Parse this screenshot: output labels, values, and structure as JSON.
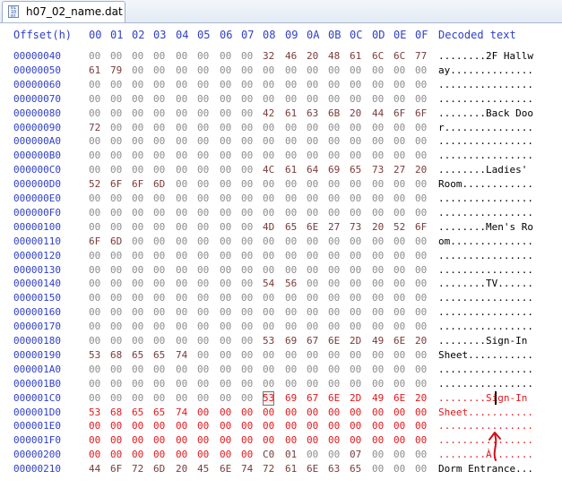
{
  "tab": {
    "title": "h07_02_name.dat"
  },
  "header": {
    "offset_label": "Offset(h)",
    "columns": [
      "00",
      "01",
      "02",
      "03",
      "04",
      "05",
      "06",
      "07",
      "08",
      "09",
      "0A",
      "0B",
      "0C",
      "0D",
      "0E",
      "0F"
    ],
    "decoded_label": "Decoded text"
  },
  "rows": [
    {
      "offset": "00000040",
      "bytes": [
        "00",
        "00",
        "00",
        "00",
        "00",
        "00",
        "00",
        "00",
        "32",
        "46",
        "20",
        "48",
        "61",
        "6C",
        "6C",
        "77"
      ],
      "decoded": "........2F Hallw"
    },
    {
      "offset": "00000050",
      "bytes": [
        "61",
        "79",
        "00",
        "00",
        "00",
        "00",
        "00",
        "00",
        "00",
        "00",
        "00",
        "00",
        "00",
        "00",
        "00",
        "00"
      ],
      "decoded": "ay.............."
    },
    {
      "offset": "00000060",
      "bytes": [
        "00",
        "00",
        "00",
        "00",
        "00",
        "00",
        "00",
        "00",
        "00",
        "00",
        "00",
        "00",
        "00",
        "00",
        "00",
        "00"
      ],
      "decoded": "................"
    },
    {
      "offset": "00000070",
      "bytes": [
        "00",
        "00",
        "00",
        "00",
        "00",
        "00",
        "00",
        "00",
        "00",
        "00",
        "00",
        "00",
        "00",
        "00",
        "00",
        "00"
      ],
      "decoded": "................"
    },
    {
      "offset": "00000080",
      "bytes": [
        "00",
        "00",
        "00",
        "00",
        "00",
        "00",
        "00",
        "00",
        "42",
        "61",
        "63",
        "6B",
        "20",
        "44",
        "6F",
        "6F"
      ],
      "decoded": "........Back Doo"
    },
    {
      "offset": "00000090",
      "bytes": [
        "72",
        "00",
        "00",
        "00",
        "00",
        "00",
        "00",
        "00",
        "00",
        "00",
        "00",
        "00",
        "00",
        "00",
        "00",
        "00"
      ],
      "decoded": "r..............."
    },
    {
      "offset": "000000A0",
      "bytes": [
        "00",
        "00",
        "00",
        "00",
        "00",
        "00",
        "00",
        "00",
        "00",
        "00",
        "00",
        "00",
        "00",
        "00",
        "00",
        "00"
      ],
      "decoded": "................"
    },
    {
      "offset": "000000B0",
      "bytes": [
        "00",
        "00",
        "00",
        "00",
        "00",
        "00",
        "00",
        "00",
        "00",
        "00",
        "00",
        "00",
        "00",
        "00",
        "00",
        "00"
      ],
      "decoded": "................"
    },
    {
      "offset": "000000C0",
      "bytes": [
        "00",
        "00",
        "00",
        "00",
        "00",
        "00",
        "00",
        "00",
        "4C",
        "61",
        "64",
        "69",
        "65",
        "73",
        "27",
        "20"
      ],
      "decoded": "........Ladies' "
    },
    {
      "offset": "000000D0",
      "bytes": [
        "52",
        "6F",
        "6F",
        "6D",
        "00",
        "00",
        "00",
        "00",
        "00",
        "00",
        "00",
        "00",
        "00",
        "00",
        "00",
        "00"
      ],
      "decoded": "Room............"
    },
    {
      "offset": "000000E0",
      "bytes": [
        "00",
        "00",
        "00",
        "00",
        "00",
        "00",
        "00",
        "00",
        "00",
        "00",
        "00",
        "00",
        "00",
        "00",
        "00",
        "00"
      ],
      "decoded": "................"
    },
    {
      "offset": "000000F0",
      "bytes": [
        "00",
        "00",
        "00",
        "00",
        "00",
        "00",
        "00",
        "00",
        "00",
        "00",
        "00",
        "00",
        "00",
        "00",
        "00",
        "00"
      ],
      "decoded": "................"
    },
    {
      "offset": "00000100",
      "bytes": [
        "00",
        "00",
        "00",
        "00",
        "00",
        "00",
        "00",
        "00",
        "4D",
        "65",
        "6E",
        "27",
        "73",
        "20",
        "52",
        "6F"
      ],
      "decoded": "........Men's Ro"
    },
    {
      "offset": "00000110",
      "bytes": [
        "6F",
        "6D",
        "00",
        "00",
        "00",
        "00",
        "00",
        "00",
        "00",
        "00",
        "00",
        "00",
        "00",
        "00",
        "00",
        "00"
      ],
      "decoded": "om.............."
    },
    {
      "offset": "00000120",
      "bytes": [
        "00",
        "00",
        "00",
        "00",
        "00",
        "00",
        "00",
        "00",
        "00",
        "00",
        "00",
        "00",
        "00",
        "00",
        "00",
        "00"
      ],
      "decoded": "................"
    },
    {
      "offset": "00000130",
      "bytes": [
        "00",
        "00",
        "00",
        "00",
        "00",
        "00",
        "00",
        "00",
        "00",
        "00",
        "00",
        "00",
        "00",
        "00",
        "00",
        "00"
      ],
      "decoded": "................"
    },
    {
      "offset": "00000140",
      "bytes": [
        "00",
        "00",
        "00",
        "00",
        "00",
        "00",
        "00",
        "00",
        "54",
        "56",
        "00",
        "00",
        "00",
        "00",
        "00",
        "00"
      ],
      "decoded": "........TV......"
    },
    {
      "offset": "00000150",
      "bytes": [
        "00",
        "00",
        "00",
        "00",
        "00",
        "00",
        "00",
        "00",
        "00",
        "00",
        "00",
        "00",
        "00",
        "00",
        "00",
        "00"
      ],
      "decoded": "................"
    },
    {
      "offset": "00000160",
      "bytes": [
        "00",
        "00",
        "00",
        "00",
        "00",
        "00",
        "00",
        "00",
        "00",
        "00",
        "00",
        "00",
        "00",
        "00",
        "00",
        "00"
      ],
      "decoded": "................"
    },
    {
      "offset": "00000170",
      "bytes": [
        "00",
        "00",
        "00",
        "00",
        "00",
        "00",
        "00",
        "00",
        "00",
        "00",
        "00",
        "00",
        "00",
        "00",
        "00",
        "00"
      ],
      "decoded": "................"
    },
    {
      "offset": "00000180",
      "bytes": [
        "00",
        "00",
        "00",
        "00",
        "00",
        "00",
        "00",
        "00",
        "53",
        "69",
        "67",
        "6E",
        "2D",
        "49",
        "6E",
        "20"
      ],
      "decoded": "........Sign-In "
    },
    {
      "offset": "00000190",
      "bytes": [
        "53",
        "68",
        "65",
        "65",
        "74",
        "00",
        "00",
        "00",
        "00",
        "00",
        "00",
        "00",
        "00",
        "00",
        "00",
        "00"
      ],
      "decoded": "Sheet..........."
    },
    {
      "offset": "000001A0",
      "bytes": [
        "00",
        "00",
        "00",
        "00",
        "00",
        "00",
        "00",
        "00",
        "00",
        "00",
        "00",
        "00",
        "00",
        "00",
        "00",
        "00"
      ],
      "decoded": "................"
    },
    {
      "offset": "000001B0",
      "bytes": [
        "00",
        "00",
        "00",
        "00",
        "00",
        "00",
        "00",
        "00",
        "00",
        "00",
        "00",
        "00",
        "00",
        "00",
        "00",
        "00"
      ],
      "decoded": "................"
    },
    {
      "offset": "000001C0",
      "bytes": [
        "00",
        "00",
        "00",
        "00",
        "00",
        "00",
        "00",
        "00",
        "53",
        "69",
        "67",
        "6E",
        "2D",
        "49",
        "6E",
        "20"
      ],
      "decoded": "........Sign-In ",
      "changed": true,
      "changed_from": 8
    },
    {
      "offset": "000001D0",
      "bytes": [
        "53",
        "68",
        "65",
        "65",
        "74",
        "00",
        "00",
        "00",
        "00",
        "00",
        "00",
        "00",
        "00",
        "00",
        "00",
        "00"
      ],
      "decoded": "Sheet...........",
      "changed": true
    },
    {
      "offset": "000001E0",
      "bytes": [
        "00",
        "00",
        "00",
        "00",
        "00",
        "00",
        "00",
        "00",
        "00",
        "00",
        "00",
        "00",
        "00",
        "00",
        "00",
        "00"
      ],
      "decoded": "................",
      "changed": true
    },
    {
      "offset": "000001F0",
      "bytes": [
        "00",
        "00",
        "00",
        "00",
        "00",
        "00",
        "00",
        "00",
        "00",
        "00",
        "00",
        "00",
        "00",
        "00",
        "00",
        "00"
      ],
      "decoded": "................",
      "changed": true
    },
    {
      "offset": "00000200",
      "bytes": [
        "00",
        "00",
        "00",
        "00",
        "00",
        "00",
        "00",
        "00",
        "C0",
        "01",
        "00",
        "00",
        "07",
        "00",
        "00",
        "00"
      ],
      "decoded": "........À.......",
      "changed": true,
      "changed_to": 7
    },
    {
      "offset": "00000210",
      "bytes": [
        "44",
        "6F",
        "72",
        "6D",
        "20",
        "45",
        "6E",
        "74",
        "72",
        "61",
        "6E",
        "63",
        "65",
        "00",
        "00",
        "00"
      ],
      "decoded": "Dorm Entrance..."
    }
  ],
  "selection": {
    "row_offset": "000001C0",
    "column": "08"
  },
  "colors": {
    "offset_blue": "#2f3fc8",
    "zero_byte_gray": "#8c8c8c",
    "byte_brown": "#7a3a3a",
    "modified_red": "#e0181c",
    "annotation_red": "#d0101a"
  },
  "annotation": {
    "icon": "hand-drawn-arrow-up-icon"
  }
}
